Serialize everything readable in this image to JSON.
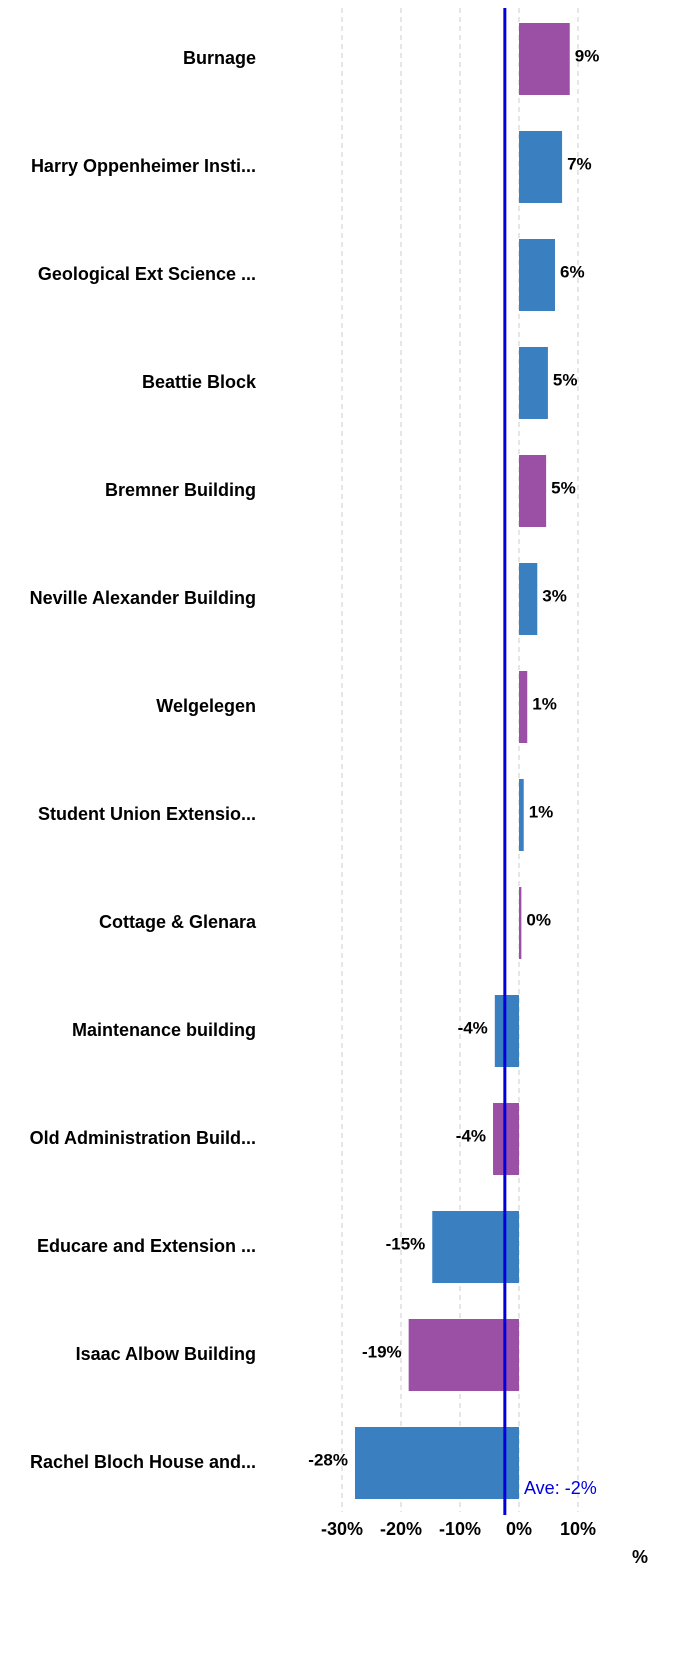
{
  "chart_data": {
    "type": "bar",
    "orientation": "horizontal",
    "categories": [
      "Burnage",
      "Harry Oppenheimer Insti...",
      "Geological Ext Science ...",
      "Beattie Block",
      "Bremner Building",
      "Neville Alexander Building",
      "Welgelegen",
      "Student Union Extensio...",
      "Cottage & Glenara",
      "Maintenance building",
      "Old Administration Build...",
      "Educare and Extension ...",
      "Isaac Albow Building",
      "Rachel Bloch House and..."
    ],
    "values": [
      8.6,
      7.3,
      6.1,
      4.9,
      4.6,
      3.1,
      1.4,
      0.8,
      0.4,
      -4.1,
      -4.4,
      -14.7,
      -18.7,
      -27.8
    ],
    "value_labels": [
      "9%",
      "7%",
      "6%",
      "5%",
      "5%",
      "3%",
      "1%",
      "1%",
      "0%",
      "-4%",
      "-4%",
      "-15%",
      "-19%",
      "-28%"
    ],
    "colors": [
      "#9b4fa5",
      "#3a7fc0",
      "#3a7fc0",
      "#3a7fc0",
      "#9b4fa5",
      "#3a7fc0",
      "#9b4fa5",
      "#3a7fc0",
      "#9b4fa5",
      "#3a7fc0",
      "#9b4fa5",
      "#3a7fc0",
      "#9b4fa5",
      "#3a7fc0"
    ],
    "xlim": [
      -30,
      10
    ],
    "xticks": [
      {
        "value": -30,
        "label": "-30%"
      },
      {
        "value": -20,
        "label": "-20%"
      },
      {
        "value": -10,
        "label": "-10%"
      },
      {
        "value": 0,
        "label": "0%"
      },
      {
        "value": 10,
        "label": "10%"
      }
    ],
    "xlabel": "%",
    "grid": true,
    "average": -2.4,
    "average_label": "Ave: -2%",
    "average_color": "#0000dd"
  }
}
